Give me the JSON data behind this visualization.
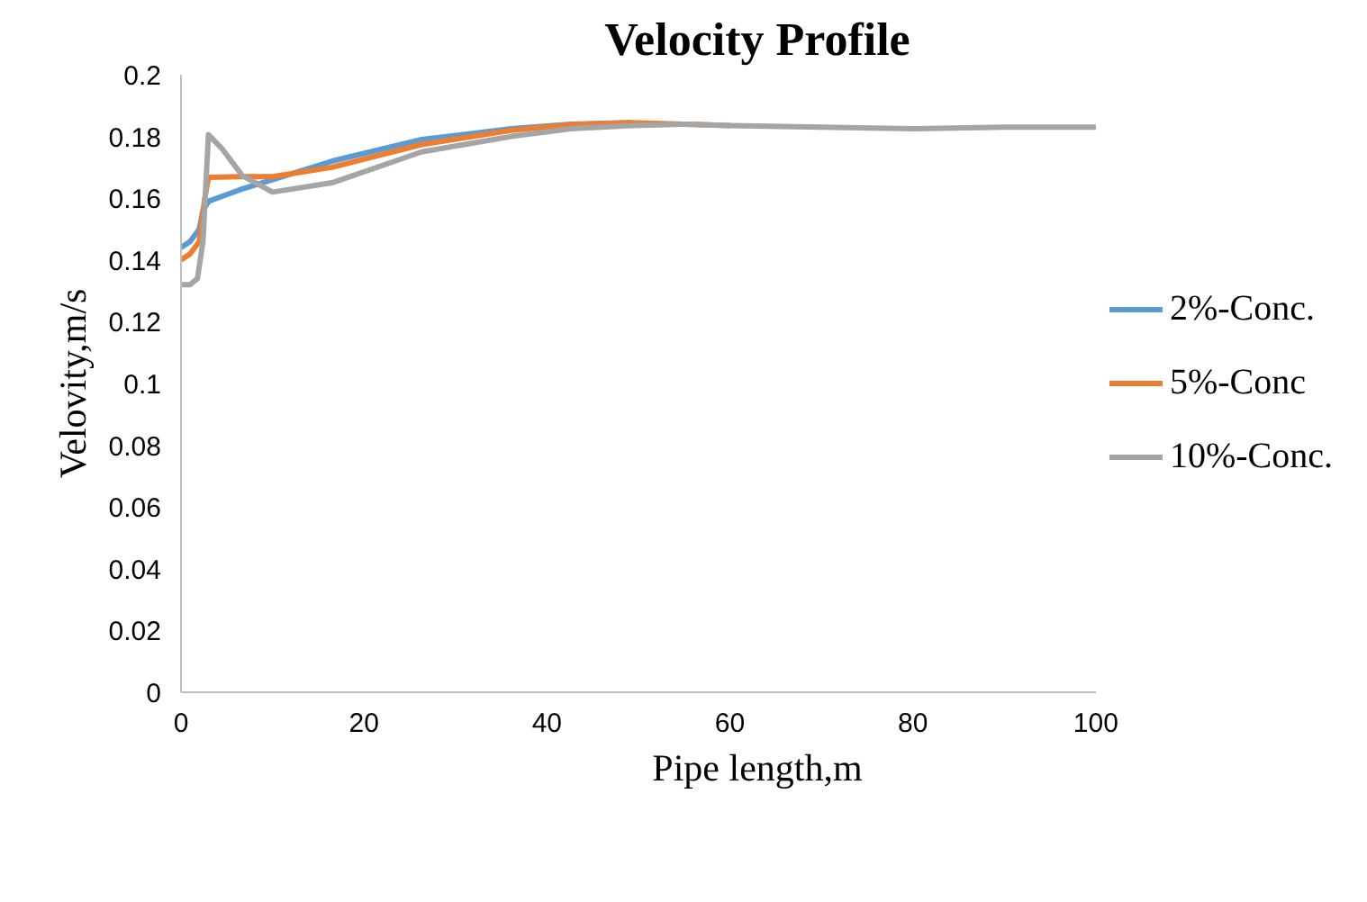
{
  "chart_data": {
    "type": "line",
    "title": "Velocity Profile",
    "xlabel": "Pipe length,m",
    "ylabel": "Velovity,m/s",
    "xlim": [
      0,
      100
    ],
    "ylim": [
      0,
      0.2
    ],
    "xticks": [
      0,
      20,
      40,
      60,
      80,
      100
    ],
    "yticks": [
      0,
      0.02,
      0.04,
      0.06,
      0.08,
      0.1,
      0.12,
      0.14,
      0.16,
      0.18,
      0.2
    ],
    "grid": false,
    "legend": "right",
    "line_style": "solid",
    "marker": "none",
    "series": [
      {
        "name": "2%-Conc.",
        "color": "#5b9bd5",
        "x": [
          0,
          1,
          2,
          2.4,
          3,
          6.7,
          10,
          16.5,
          26.3,
          36.1,
          42.6,
          49.2
        ],
        "values": [
          0.144,
          0.146,
          0.15,
          0.156,
          0.159,
          0.163,
          0.166,
          0.172,
          0.179,
          0.1825,
          0.184,
          0.1845
        ]
      },
      {
        "name": "5%-Conc",
        "color": "#ed7d31",
        "x": [
          0,
          1,
          2,
          2.6,
          3,
          6.7,
          10,
          16.5,
          26.3,
          36.1,
          42.6,
          49.2,
          55,
          60
        ],
        "values": [
          0.14,
          0.142,
          0.146,
          0.16,
          0.1668,
          0.167,
          0.167,
          0.17,
          0.1774,
          0.182,
          0.1838,
          0.1845,
          0.184,
          0.1835
        ]
      },
      {
        "name": "10%-Conc.",
        "color": "#a5a5a5",
        "x": [
          0,
          1,
          1.8,
          2.4,
          3,
          4.5,
          6.7,
          10,
          16.5,
          26.3,
          36.1,
          42.6,
          49.2,
          55,
          60,
          70,
          80,
          90,
          100
        ],
        "values": [
          0.132,
          0.132,
          0.134,
          0.146,
          0.1806,
          0.176,
          0.1673,
          0.162,
          0.165,
          0.175,
          0.18,
          0.1825,
          0.1835,
          0.184,
          0.1835,
          0.183,
          0.1825,
          0.183,
          0.183
        ]
      }
    ]
  }
}
